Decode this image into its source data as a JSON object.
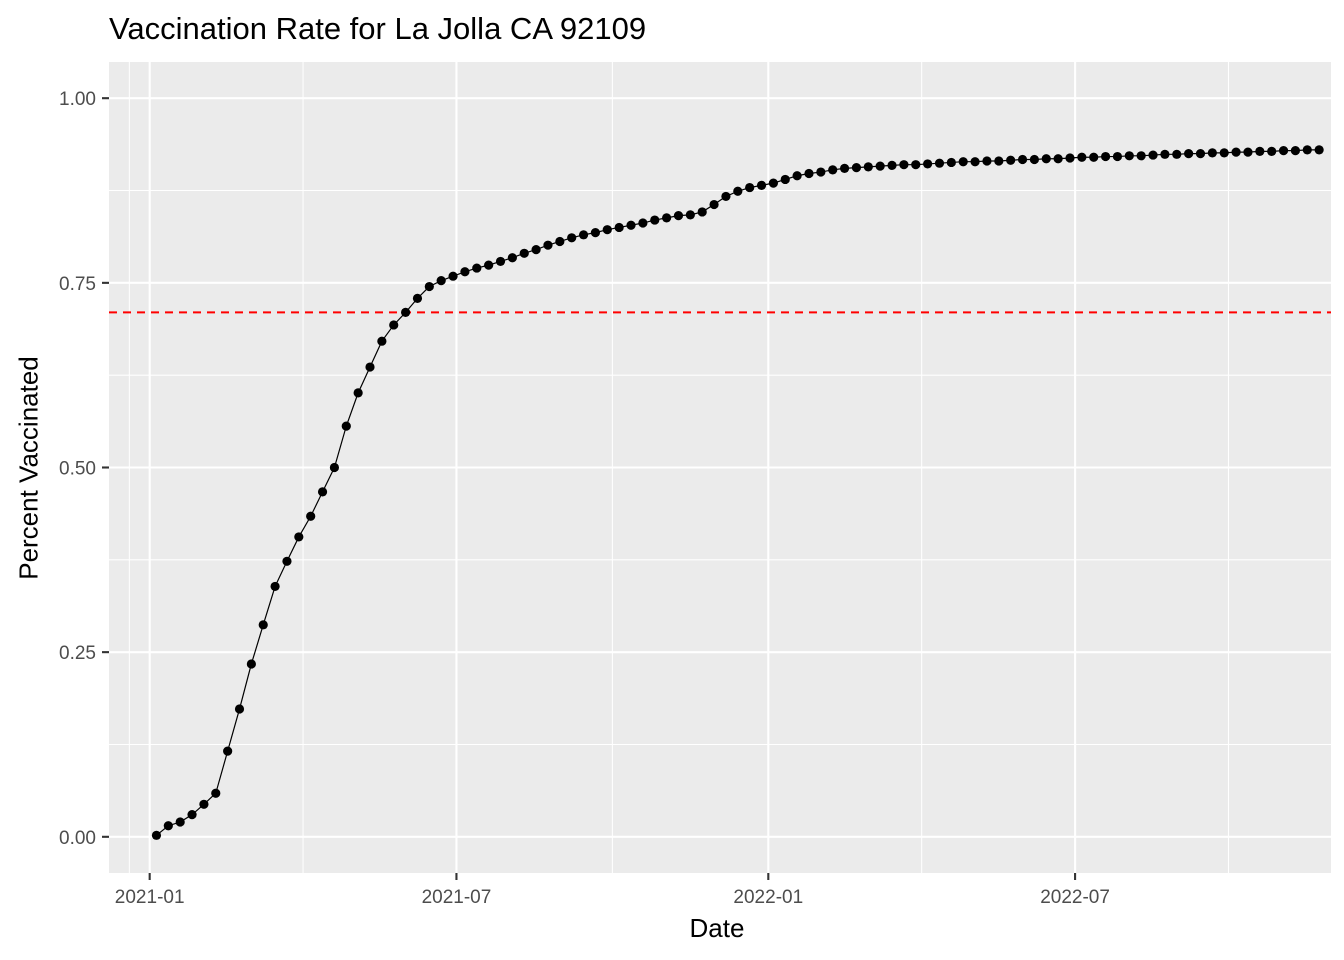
{
  "chart_data": {
    "type": "line",
    "title": "Vaccination Rate for La Jolla CA 92109",
    "xlabel": "Date",
    "ylabel": "Percent Vaccinated",
    "x_tick_labels": [
      "2021-01",
      "2021-07",
      "2022-01",
      "2022-07"
    ],
    "x_tick_dates": [
      "2021-01-01",
      "2021-07-01",
      "2022-01-01",
      "2022-07-01"
    ],
    "y_tick_labels": [
      "0.00",
      "0.25",
      "0.50",
      "0.75",
      "1.00"
    ],
    "y_ticks": [
      0,
      0.25,
      0.5,
      0.75,
      1.0
    ],
    "xlim": [
      "2020-12-08",
      "2022-11-29"
    ],
    "ylim": [
      -0.049,
      1.049
    ],
    "grid": true,
    "legend": "none",
    "reference_line": {
      "y": 0.71,
      "style": "dashed",
      "color": "#ff0000"
    },
    "colors": {
      "panel_background": "#ebebeb",
      "grid": "#ffffff",
      "line": "#000000",
      "points": "#000000"
    },
    "series": [
      {
        "x": [
          "2021-01-05",
          "2021-01-12",
          "2021-01-19",
          "2021-01-26",
          "2021-02-02",
          "2021-02-09",
          "2021-02-16",
          "2021-02-23",
          "2021-03-02",
          "2021-03-09",
          "2021-03-16",
          "2021-03-23",
          "2021-03-30",
          "2021-04-06",
          "2021-04-13",
          "2021-04-20",
          "2021-04-27",
          "2021-05-04",
          "2021-05-11",
          "2021-05-18",
          "2021-05-25",
          "2021-06-01",
          "2021-06-08",
          "2021-06-15",
          "2021-06-22",
          "2021-06-29",
          "2021-07-06",
          "2021-07-13",
          "2021-07-20",
          "2021-07-27",
          "2021-08-03",
          "2021-08-10",
          "2021-08-17",
          "2021-08-24",
          "2021-08-31",
          "2021-09-07",
          "2021-09-14",
          "2021-09-21",
          "2021-09-28",
          "2021-10-05",
          "2021-10-12",
          "2021-10-19",
          "2021-10-26",
          "2021-11-02",
          "2021-11-09",
          "2021-11-16",
          "2021-11-23",
          "2021-11-30",
          "2021-12-07",
          "2021-12-14",
          "2021-12-21",
          "2021-12-28",
          "2022-01-04",
          "2022-01-11",
          "2022-01-18",
          "2022-01-25",
          "2022-02-01",
          "2022-02-08",
          "2022-02-15",
          "2022-02-22",
          "2022-03-01",
          "2022-03-08",
          "2022-03-15",
          "2022-03-22",
          "2022-03-29",
          "2022-04-05",
          "2022-04-12",
          "2022-04-19",
          "2022-04-26",
          "2022-05-03",
          "2022-05-10",
          "2022-05-17",
          "2022-05-24",
          "2022-05-31",
          "2022-06-07",
          "2022-06-14",
          "2022-06-21",
          "2022-06-28",
          "2022-07-05",
          "2022-07-12",
          "2022-07-19",
          "2022-07-26",
          "2022-08-02",
          "2022-08-09",
          "2022-08-16",
          "2022-08-23",
          "2022-08-30",
          "2022-09-06",
          "2022-09-13",
          "2022-09-20",
          "2022-09-27",
          "2022-10-04",
          "2022-10-11",
          "2022-10-18",
          "2022-10-25",
          "2022-11-01",
          "2022-11-08",
          "2022-11-15",
          "2022-11-22"
        ],
        "y": [
          0.002,
          0.015,
          0.02,
          0.03,
          0.044,
          0.059,
          0.116,
          0.173,
          0.234,
          0.287,
          0.339,
          0.373,
          0.406,
          0.434,
          0.467,
          0.5,
          0.556,
          0.601,
          0.636,
          0.671,
          0.693,
          0.71,
          0.729,
          0.745,
          0.753,
          0.759,
          0.765,
          0.77,
          0.774,
          0.779,
          0.784,
          0.79,
          0.795,
          0.801,
          0.806,
          0.811,
          0.815,
          0.818,
          0.822,
          0.825,
          0.828,
          0.831,
          0.835,
          0.838,
          0.841,
          0.842,
          0.846,
          0.856,
          0.867,
          0.874,
          0.879,
          0.882,
          0.885,
          0.89,
          0.895,
          0.898,
          0.9,
          0.903,
          0.905,
          0.906,
          0.907,
          0.908,
          0.909,
          0.91,
          0.91,
          0.911,
          0.912,
          0.913,
          0.914,
          0.914,
          0.915,
          0.915,
          0.916,
          0.917,
          0.917,
          0.918,
          0.918,
          0.919,
          0.92,
          0.92,
          0.921,
          0.921,
          0.922,
          0.922,
          0.923,
          0.924,
          0.924,
          0.925,
          0.925,
          0.926,
          0.926,
          0.927,
          0.927,
          0.928,
          0.928,
          0.929,
          0.929,
          0.93,
          0.93
        ]
      }
    ]
  }
}
